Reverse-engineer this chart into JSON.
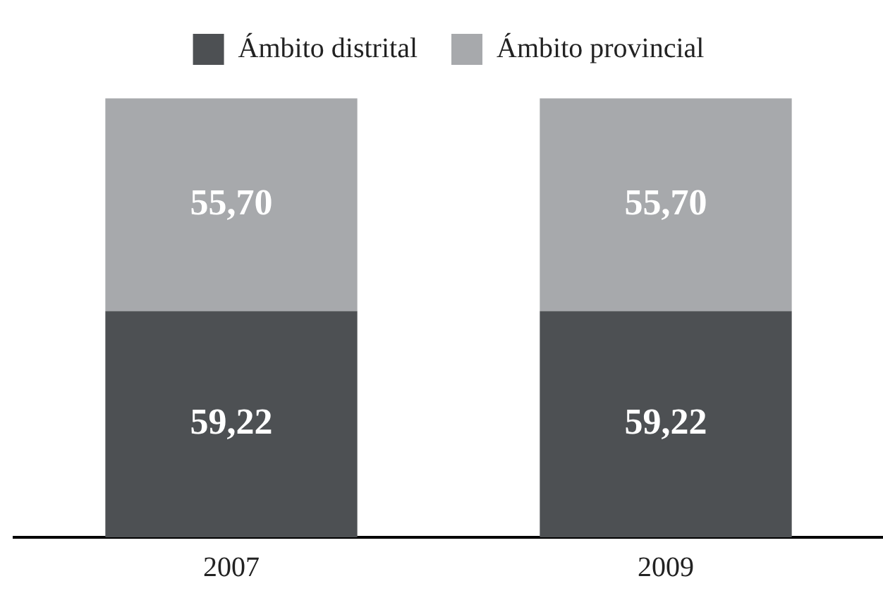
{
  "chart_data": {
    "type": "bar",
    "stacked": true,
    "categories": [
      "2007",
      "2009"
    ],
    "series": [
      {
        "name": "Ámbito distrital",
        "color": "#4d5053",
        "values": [
          59.22,
          59.22
        ],
        "value_labels": [
          "59,22",
          "59,22"
        ]
      },
      {
        "name": "Ámbito provincial",
        "color": "#a7a9ac",
        "values": [
          55.7,
          55.7
        ],
        "value_labels": [
          "55,70",
          "55,70"
        ]
      }
    ],
    "legend": "top",
    "grid": false,
    "tick_labels": "x"
  }
}
